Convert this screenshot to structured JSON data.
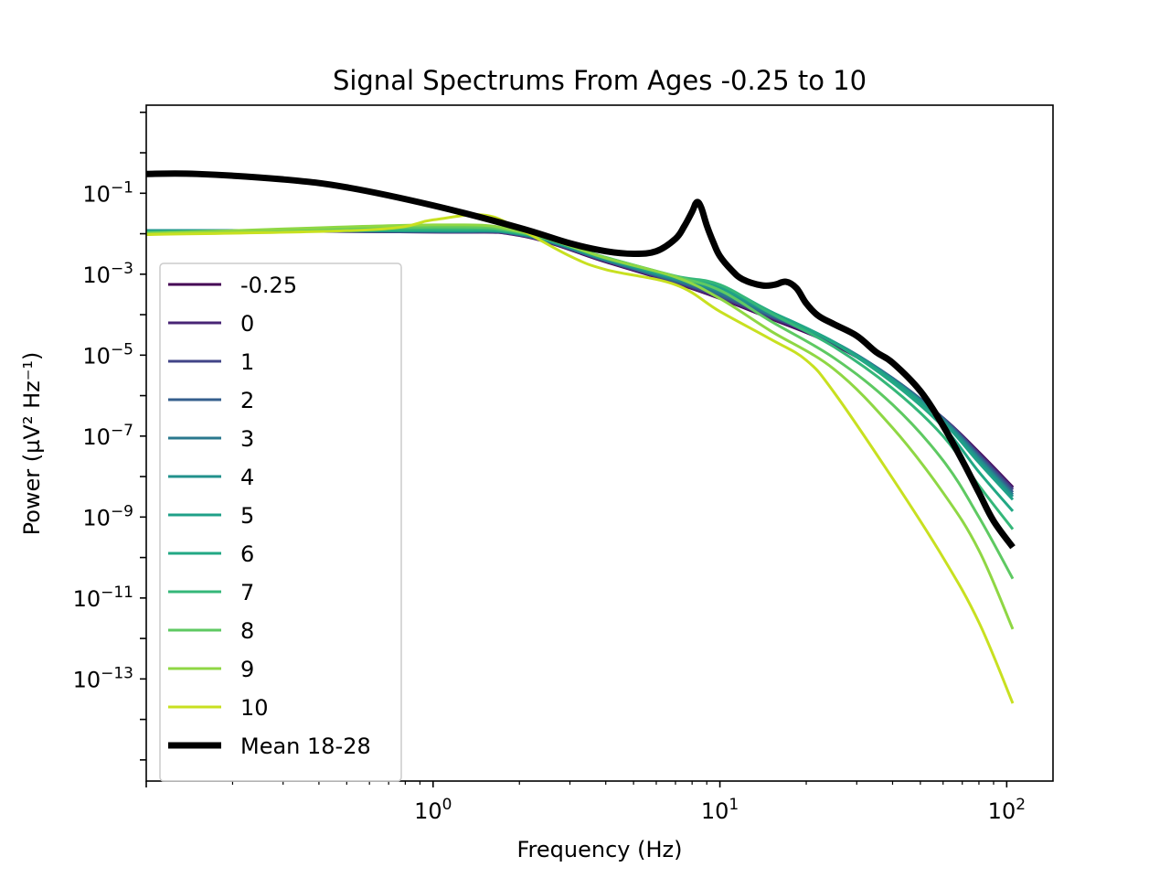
{
  "chart_data": {
    "type": "line",
    "title": "Signal Spectrums From Ages -0.25 to 10",
    "xlabel": "Frequency (Hz)",
    "ylabel": "Power (µV² Hz⁻¹)",
    "x_scale": "log",
    "y_scale": "log",
    "xlim": [
      0.1,
      145
    ],
    "ylim": [
      3e-16,
      15
    ],
    "x_ticks": [
      {
        "value": 1,
        "mantissa": "10",
        "exp": "0"
      },
      {
        "value": 10,
        "mantissa": "10",
        "exp": "1"
      },
      {
        "value": 100,
        "mantissa": "10",
        "exp": "2"
      }
    ],
    "y_ticks": [
      {
        "value": 0.1,
        "mantissa": "10",
        "exp": "−1"
      },
      {
        "value": 0.001,
        "mantissa": "10",
        "exp": "−3"
      },
      {
        "value": 1e-05,
        "mantissa": "10",
        "exp": "−5"
      },
      {
        "value": 1e-07,
        "mantissa": "10",
        "exp": "−7"
      },
      {
        "value": 1e-09,
        "mantissa": "10",
        "exp": "−9"
      },
      {
        "value": 1e-11,
        "mantissa": "10",
        "exp": "−11"
      },
      {
        "value": 1e-13,
        "mantissa": "10",
        "exp": "−13"
      }
    ],
    "grid": false,
    "legend_position": "lower-left",
    "series": [
      {
        "name": "-0.25",
        "color": "#440154",
        "width": 3,
        "x": [
          0.1,
          1,
          2,
          4,
          7,
          10,
          15,
          25,
          40,
          60,
          80,
          105
        ],
        "y": [
          0.012,
          0.011,
          0.009,
          0.002,
          0.0006,
          0.00025,
          8e-05,
          1.8e-05,
          2.5e-06,
          2.8e-07,
          4e-08,
          5.5e-09
        ]
      },
      {
        "name": "0",
        "color": "#482475",
        "width": 3,
        "x": [
          0.1,
          1,
          2,
          4,
          7,
          10,
          15,
          25,
          40,
          60,
          80,
          105
        ],
        "y": [
          0.012,
          0.011,
          0.0092,
          0.0021,
          0.00062,
          0.00026,
          8.5e-05,
          1.9e-05,
          2.6e-06,
          2.8e-07,
          3.8e-08,
          5.2e-09
        ]
      },
      {
        "name": "1",
        "color": "#414487",
        "width": 3,
        "x": [
          0.1,
          1,
          2,
          4,
          7,
          10,
          15,
          25,
          40,
          60,
          80,
          105
        ],
        "y": [
          0.012,
          0.0112,
          0.0093,
          0.0021,
          0.00065,
          0.00028,
          9e-05,
          2e-05,
          2.7e-06,
          2.8e-07,
          3.5e-08,
          4.7e-09
        ]
      },
      {
        "name": "2",
        "color": "#355f8d",
        "width": 3,
        "x": [
          0.1,
          1,
          2,
          4,
          7,
          10,
          15,
          25,
          40,
          60,
          80,
          105
        ],
        "y": [
          0.012,
          0.0114,
          0.0095,
          0.0022,
          0.00068,
          0.0003,
          9.5e-05,
          2.1e-05,
          2.7e-06,
          2.7e-07,
          3.2e-08,
          4.1e-09
        ]
      },
      {
        "name": "3",
        "color": "#2a788e",
        "width": 3,
        "x": [
          0.1,
          1,
          2,
          4,
          7,
          10,
          15,
          25,
          40,
          60,
          80,
          105
        ],
        "y": [
          0.012,
          0.0115,
          0.0097,
          0.0022,
          0.0007,
          0.00033,
          0.0001,
          2.1e-05,
          2.6e-06,
          2.6e-07,
          2.9e-08,
          3.6e-09
        ]
      },
      {
        "name": "4",
        "color": "#21918c",
        "width": 3,
        "x": [
          0.1,
          1,
          2,
          4,
          7,
          10,
          15,
          25,
          40,
          60,
          80,
          105
        ],
        "y": [
          0.012,
          0.0117,
          0.0099,
          0.0023,
          0.00075,
          0.00038,
          0.00011,
          2.1e-05,
          2.5e-06,
          2.4e-07,
          2.6e-08,
          3.2e-09
        ]
      },
      {
        "name": "5",
        "color": "#1fa088",
        "width": 3,
        "x": [
          0.1,
          1,
          2,
          4,
          7,
          10,
          15,
          25,
          40,
          60,
          80,
          105
        ],
        "y": [
          0.0115,
          0.012,
          0.01,
          0.0024,
          0.0008,
          0.00045,
          0.00012,
          2.1e-05,
          2.4e-06,
          2.2e-07,
          2.2e-08,
          2.7e-09
        ]
      },
      {
        "name": "6",
        "color": "#22a884",
        "width": 3,
        "x": [
          0.1,
          1,
          2,
          4,
          7,
          10,
          15,
          25,
          40,
          60,
          80,
          105
        ],
        "y": [
          0.0112,
          0.0125,
          0.0103,
          0.0025,
          0.00085,
          0.00052,
          0.00012,
          2e-05,
          2.1e-06,
          1.7e-07,
          1.3e-08,
          1.4e-09
        ]
      },
      {
        "name": "7",
        "color": "#35b779",
        "width": 3,
        "x": [
          0.1,
          1,
          2,
          4,
          7,
          10,
          15,
          25,
          40,
          60,
          80,
          105
        ],
        "y": [
          0.011,
          0.013,
          0.0105,
          0.0026,
          0.0009,
          0.00055,
          0.00011,
          1.6e-05,
          1.5e-06,
          1e-07,
          6e-09,
          5e-10
        ]
      },
      {
        "name": "8",
        "color": "#5ec962",
        "width": 3,
        "x": [
          0.1,
          1,
          2,
          4,
          7,
          10,
          15,
          25,
          40,
          60,
          80,
          105
        ],
        "y": [
          0.0105,
          0.0145,
          0.011,
          0.0026,
          0.00088,
          0.0004,
          7e-05,
          8.5e-06,
          6e-07,
          2.5e-08,
          1e-09,
          3e-11
        ]
      },
      {
        "name": "9",
        "color": "#8fd744",
        "width": 3,
        "x": [
          0.1,
          1,
          2,
          4,
          7,
          10,
          15,
          25,
          40,
          60,
          80,
          105
        ],
        "y": [
          0.01,
          0.0165,
          0.0115,
          0.0025,
          0.00085,
          0.00025,
          4e-05,
          4.5e-06,
          1.6e-07,
          4e-09,
          1.5e-10,
          1.7e-12
        ]
      },
      {
        "name": "10",
        "color": "#c8e020",
        "width": 3,
        "x": [
          0.1,
          0.6,
          1,
          1.5,
          2,
          3,
          4,
          7,
          10,
          15,
          20,
          25,
          40,
          60,
          80,
          105
        ],
        "y": [
          0.0095,
          0.0125,
          0.022,
          0.029,
          0.013,
          0.0028,
          0.0013,
          0.00055,
          0.00012,
          2.5e-05,
          7.5e-06,
          1.2e-06,
          9e-09,
          1e-10,
          2.5e-12,
          2.5e-14
        ]
      },
      {
        "name": "Mean 18-28",
        "color": "#000000",
        "width": 7,
        "x": [
          0.1,
          0.15,
          0.3,
          0.5,
          1,
          2,
          3,
          4,
          5,
          6,
          7,
          7.5,
          8,
          8.3,
          8.6,
          9,
          9.5,
          10,
          11,
          12,
          14,
          15.5,
          17,
          18.5,
          20,
          22,
          25,
          30,
          35,
          40,
          50,
          60,
          70,
          80,
          90,
          105
        ],
        "y": [
          0.3,
          0.3,
          0.22,
          0.14,
          0.05,
          0.014,
          0.0058,
          0.0037,
          0.0032,
          0.0037,
          0.0075,
          0.015,
          0.035,
          0.06,
          0.045,
          0.016,
          0.006,
          0.0028,
          0.00125,
          0.00075,
          0.00053,
          0.00055,
          0.00065,
          0.00045,
          0.00019,
          9.5e-05,
          5.8e-05,
          3e-05,
          1.2e-05,
          6.5e-06,
          1.3e-06,
          1.8e-07,
          2.5e-08,
          4e-09,
          8e-10,
          1.8e-10
        ]
      }
    ]
  }
}
